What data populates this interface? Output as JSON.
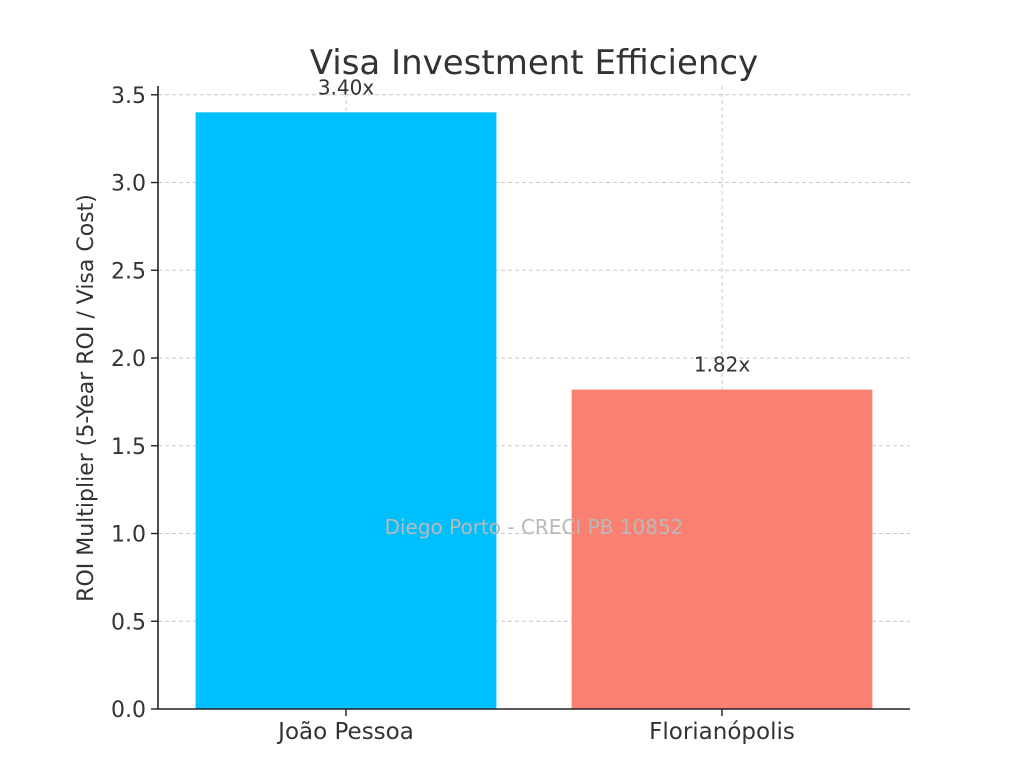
{
  "chart_data": {
    "type": "bar",
    "title": "Visa Investment Efficiency",
    "xlabel": "",
    "ylabel": "ROI Multiplier (5-Year ROI / Visa Cost)",
    "categories": [
      "João Pessoa",
      "Florianópolis"
    ],
    "values": [
      3.4,
      1.82
    ],
    "data_labels": [
      "3.40x",
      "1.82x"
    ],
    "colors": [
      "#00bfff",
      "#fa8072"
    ],
    "ylim": [
      0,
      3.55
    ],
    "yticks": [
      0.0,
      0.5,
      1.0,
      1.5,
      2.0,
      2.5,
      3.0,
      3.5
    ],
    "ytick_labels": [
      "0.0",
      "0.5",
      "1.0",
      "1.5",
      "2.0",
      "2.5",
      "3.0",
      "3.5"
    ],
    "grid": true,
    "watermark": "Diego Porto - CRECI PB 10852"
  }
}
